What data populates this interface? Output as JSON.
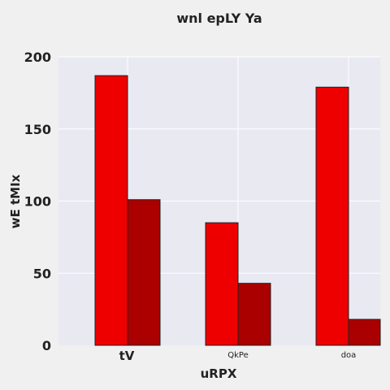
{
  "chart_data": {
    "type": "bar",
    "title": "wnl epLY Ya",
    "xlabel": "uRPX",
    "ylabel": "wE tMIx",
    "categories": [
      "tV",
      "QkPe",
      "doa"
    ],
    "series": [
      {
        "values": [
          187,
          85,
          179
        ]
      },
      {
        "values": [
          101,
          43,
          18
        ]
      }
    ],
    "ylim": [
      0,
      200
    ],
    "yticks": [
      0,
      50,
      100,
      150,
      200
    ],
    "grid": true,
    "colors": {
      "series": [
        "#ee0000",
        "#aa0000"
      ],
      "plot_background": "#e9e9f2",
      "page_background": "#f0f0f0",
      "grid": "#ffffff",
      "bar_edge": "#222222"
    }
  }
}
